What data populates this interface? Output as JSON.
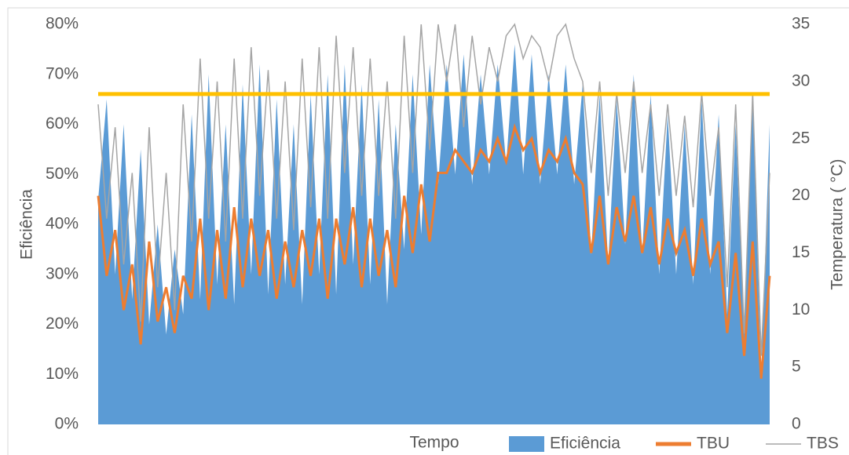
{
  "chart_data": {
    "type": "area_line",
    "xlabel": "Tempo",
    "ylabel": "Eficiência",
    "y2label": "Temperatura ( °C)",
    "ylim": [
      0,
      80
    ],
    "yticks": [
      {
        "value": 0,
        "label": "0%"
      },
      {
        "value": 10,
        "label": "10%"
      },
      {
        "value": 20,
        "label": "20%"
      },
      {
        "value": 30,
        "label": "30%"
      },
      {
        "value": 40,
        "label": "40%"
      },
      {
        "value": 50,
        "label": "50%"
      },
      {
        "value": 60,
        "label": "60%"
      },
      {
        "value": 70,
        "label": "70%"
      },
      {
        "value": 80,
        "label": "80%"
      }
    ],
    "y2lim": [
      0,
      35
    ],
    "y2ticks": [
      0,
      5,
      10,
      15,
      20,
      25,
      30,
      35
    ],
    "reference": {
      "axis": "y2",
      "value": 28.9,
      "color": "#ffc000"
    },
    "series": [
      {
        "name": "Eficiência",
        "kind": "area",
        "color": "#5b9bd5",
        "values": [
          45,
          65,
          30,
          60,
          25,
          55,
          20,
          40,
          18,
          35,
          22,
          62,
          25,
          70,
          28,
          60,
          24,
          68,
          30,
          72,
          26,
          65,
          28,
          60,
          24,
          66,
          30,
          70,
          26,
          72,
          32,
          68,
          28,
          65,
          24,
          60,
          35,
          70,
          38,
          72,
          48,
          72,
          50,
          74,
          48,
          70,
          50,
          72,
          52,
          76,
          50,
          74,
          48,
          70,
          50,
          72,
          48,
          68,
          34,
          66,
          32,
          65,
          36,
          70,
          34,
          66,
          30,
          62,
          30,
          60,
          28,
          65,
          30,
          62,
          22,
          60,
          18,
          65,
          10,
          60
        ]
      },
      {
        "name": "TBU",
        "kind": "line",
        "axis": "y2",
        "color": "#ed7d31",
        "values": [
          20,
          13,
          17,
          10,
          14,
          7,
          16,
          9,
          12,
          8,
          13,
          11,
          18,
          10,
          17,
          11,
          19,
          12,
          18,
          13,
          17,
          11,
          16,
          12,
          17,
          13,
          18,
          11,
          18,
          14,
          19,
          12,
          18,
          13,
          17,
          12,
          20,
          15,
          21,
          16,
          22,
          22,
          24,
          23,
          22,
          24,
          23,
          25,
          23,
          26,
          24,
          25,
          22,
          24,
          23,
          25,
          22,
          21,
          15,
          20,
          14,
          19,
          16,
          20,
          15,
          19,
          14,
          18,
          15,
          17,
          13,
          18,
          14,
          16,
          8,
          15,
          6,
          16,
          4,
          13
        ]
      },
      {
        "name": "TBS",
        "kind": "line",
        "axis": "y2",
        "color": "#a5a5a5",
        "values": [
          28,
          18,
          26,
          14,
          22,
          9,
          26,
          12,
          22,
          10,
          28,
          16,
          32,
          18,
          30,
          16,
          32,
          18,
          33,
          20,
          31,
          18,
          30,
          17,
          32,
          19,
          33,
          18,
          34,
          22,
          33,
          20,
          32,
          20,
          30,
          18,
          34,
          22,
          35,
          24,
          35,
          30,
          35,
          26,
          34,
          28,
          33,
          30,
          34,
          35,
          32,
          34,
          33,
          30,
          34,
          35,
          32,
          30,
          22,
          30,
          20,
          29,
          22,
          30,
          22,
          28,
          20,
          28,
          20,
          27,
          19,
          29,
          20,
          26,
          12,
          28,
          8,
          29,
          6,
          22
        ]
      }
    ]
  }
}
